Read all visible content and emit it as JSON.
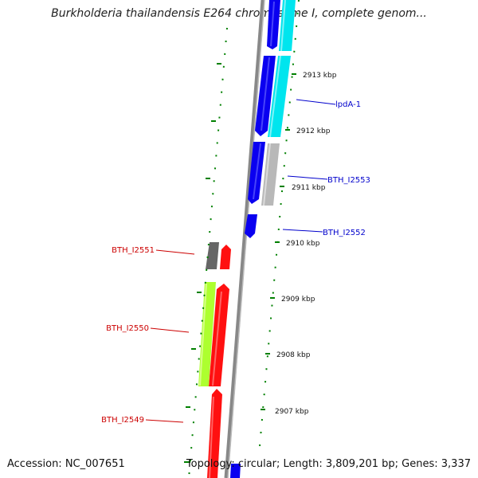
{
  "title": "Burkholderia thailandensis E264 chromosome I, complete genom...",
  "footer": {
    "accession": "Accession: NC_007651",
    "summary": "Topology: circular; Length: 3,809,201 bp; Genes: 3,337"
  },
  "ticks": [
    "2913 kbp",
    "2912 kbp",
    "2911 kbp",
    "2910 kbp",
    "2909 kbp",
    "2908 kbp",
    "2907 kbp"
  ],
  "genes": [
    {
      "label": "lpdA-1",
      "strand": "forward",
      "color": "#0000cc"
    },
    {
      "label": "BTH_I2553",
      "strand": "forward",
      "color": "#0000cc"
    },
    {
      "label": "BTH_I2552",
      "strand": "forward",
      "color": "#0000cc"
    },
    {
      "label": "BTH_I2551",
      "strand": "reverse",
      "color": "#cc0000"
    },
    {
      "label": "BTH_I2550",
      "strand": "reverse",
      "color": "#cc0000"
    },
    {
      "label": "BTH_I2549",
      "strand": "reverse",
      "color": "#cc0000"
    }
  ],
  "colors": {
    "forward_cds": "#0000ff",
    "reverse_cds": "#ff0000",
    "forward_cog": "#00e5ee",
    "reverse_cog": "#adff2f",
    "gc_skew": "#008000",
    "backbone": "#888888"
  }
}
